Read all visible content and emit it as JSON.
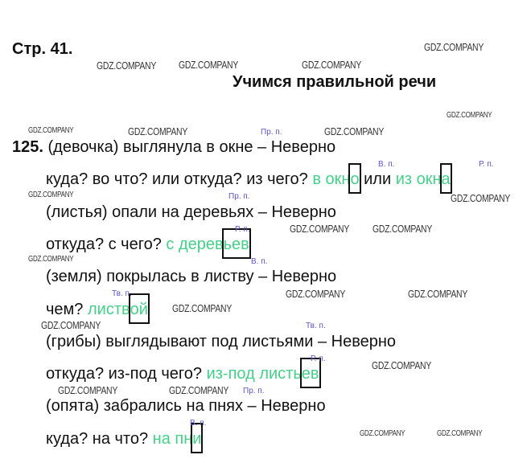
{
  "header": {
    "page_ref": "Стр. 41.",
    "title": "Учимся правильной речи"
  },
  "exercise": {
    "number": "125.",
    "lines": [
      {
        "parts": [
          {
            "t": "(девочка) выглянула в окне – Неверно"
          }
        ]
      },
      {
        "parts": [
          {
            "t": "куда? во что? или откуда? из чего? "
          },
          {
            "t": "в окн",
            "g": true
          },
          {
            "t": "о",
            "g": true,
            "box": true
          },
          {
            "t": " или "
          },
          {
            "t": "из окн",
            "g": true
          },
          {
            "t": "а",
            "g": true,
            "box": true
          }
        ]
      },
      {
        "parts": [
          {
            "t": "(листья) опали на деревьях – Неверно"
          }
        ]
      },
      {
        "parts": [
          {
            "t": "откуда? с чего? "
          },
          {
            "t": "с дерев",
            "g": true
          },
          {
            "t": "ьев",
            "g": true,
            "box": true
          }
        ]
      },
      {
        "parts": [
          {
            "t": "(земля) покрылась в листву – Неверно"
          }
        ]
      },
      {
        "parts": [
          {
            "t": "чем? "
          },
          {
            "t": "листв",
            "g": true
          },
          {
            "t": "ой",
            "g": true,
            "box": true
          }
        ]
      },
      {
        "parts": [
          {
            "t": "(грибы) выглядывают под листьями – Неверно"
          }
        ]
      },
      {
        "parts": [
          {
            "t": "откуда? из-под чего? "
          },
          {
            "t": "из-под листь",
            "g": true
          },
          {
            "t": "ев",
            "g": true,
            "box": true
          }
        ]
      },
      {
        "parts": [
          {
            "t": "(опята) забрались на пнях – Неверно"
          }
        ]
      },
      {
        "parts": [
          {
            "t": "куда? на что? "
          },
          {
            "t": "на пн",
            "g": true
          },
          {
            "t": "и",
            "g": true,
            "box": true
          }
        ]
      }
    ],
    "case_labels": [
      "Пр. п.",
      "В. п.",
      "Р. п.",
      "Пр. п.",
      "Р. п.",
      "В. п.",
      "Тв. п.",
      "Тв. п.",
      "Р. п.",
      "Пр. п.",
      "В. п."
    ]
  },
  "watermark": "GDZ.COMPANY",
  "colors": {
    "answer": "#45d08a",
    "case_label": "#5a55c8",
    "text": "#111111"
  }
}
